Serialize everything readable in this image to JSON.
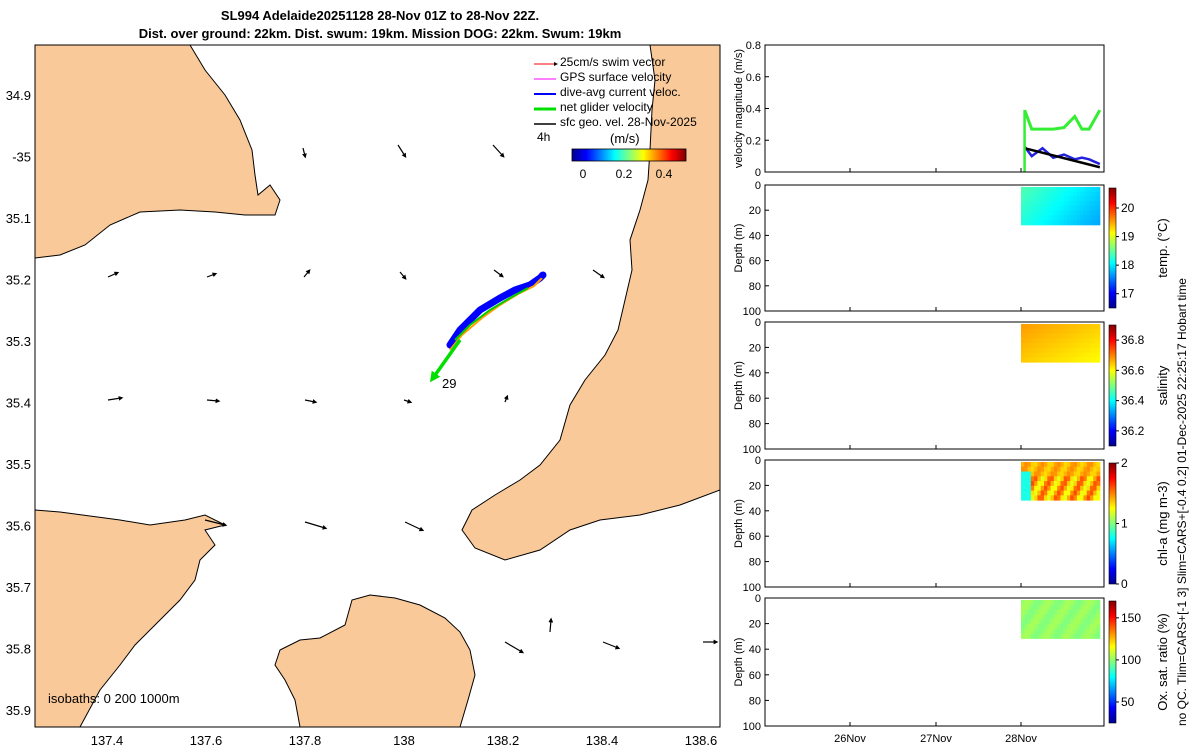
{
  "title": {
    "line1": "SL994 Adelaide20251128 28-Nov 01Z to 28-Nov 22Z.",
    "line2": "Dist. over ground: 22km. Dist. swum: 19km. Mission DOG: 22km. Swum: 19km"
  },
  "map": {
    "lon_ticks": [
      "137.4",
      "137.6",
      "137.8",
      "138",
      "138.2",
      "138.4",
      "138.6"
    ],
    "lat_ticks": [
      "34.9",
      "-35",
      "35.1",
      "35.2",
      "35.3",
      "35.4",
      "35.5",
      "35.6",
      "35.7",
      "35.8",
      "35.9"
    ],
    "legend": [
      {
        "label": "25cm/s swim vector",
        "color": "#ff0000"
      },
      {
        "label": "GPS surface velocity",
        "color": "#ff00ff"
      },
      {
        "label": "dive-avg current veloc.",
        "color": "#0000ff"
      },
      {
        "label": "net glider velocity",
        "color": "#00e000"
      },
      {
        "label": "sfc geo. vel. 28-Nov-2025",
        "color": "#000000"
      }
    ],
    "time_label": "4h",
    "colorbar": {
      "unit": "(m/s)",
      "ticks": [
        "0",
        "0.2",
        "0.4"
      ]
    },
    "track_label": "29",
    "isobaths": "isobaths: 0   200  1000m",
    "land_color": "#f9c999"
  },
  "chart_data": [
    {
      "type": "line",
      "ylabel": "velocity magnitude (m/s)",
      "ylim": [
        0,
        0.8
      ],
      "yticks": [
        "0",
        "0.2",
        "0.4",
        "0.6",
        "0.8"
      ],
      "xticks": [
        "26Nov",
        "27Nov",
        "28Nov"
      ],
      "series": [
        {
          "color": "#33ee33",
          "x": [
            "28Nov 01Z",
            "28Nov 03Z",
            "28Nov 06Z",
            "28Nov 09Z",
            "28Nov 12Z",
            "28Nov 15Z",
            "28Nov 17Z",
            "28Nov 19Z",
            "28Nov 22Z"
          ],
          "values": [
            0.39,
            0.27,
            0.27,
            0.27,
            0.28,
            0.35,
            0.27,
            0.27,
            0.39
          ]
        },
        {
          "color": "#2222dd",
          "x": [
            "28Nov 01Z",
            "28Nov 03Z",
            "28Nov 06Z",
            "28Nov 09Z",
            "28Nov 12Z",
            "28Nov 15Z",
            "28Nov 17Z",
            "28Nov 19Z",
            "28Nov 22Z"
          ],
          "values": [
            0.16,
            0.1,
            0.15,
            0.09,
            0.11,
            0.08,
            0.09,
            0.08,
            0.05
          ]
        },
        {
          "color": "#000000",
          "x": [
            "28Nov 01Z",
            "28Nov 22Z"
          ],
          "values": [
            0.15,
            0.03
          ]
        }
      ]
    },
    {
      "type": "heatmap",
      "ylabel": "Depth (m)",
      "colorbar_label": "temp. (°C)",
      "yticks": [
        "0",
        "20",
        "40",
        "60",
        "80",
        "100"
      ],
      "cticks": [
        "17",
        "18",
        "19",
        "20"
      ],
      "crange": [
        16.5,
        20.7
      ]
    },
    {
      "type": "heatmap",
      "ylabel": "Depth (m)",
      "colorbar_label": "salinity",
      "yticks": [
        "0",
        "20",
        "40",
        "60",
        "80",
        "100"
      ],
      "cticks": [
        "36.2",
        "36.4",
        "36.6",
        "36.8"
      ],
      "crange": [
        36.1,
        36.9
      ]
    },
    {
      "type": "heatmap",
      "ylabel": "Depth (m)",
      "colorbar_label": "chl-a (mg m-3)",
      "yticks": [
        "0",
        "20",
        "40",
        "60",
        "80",
        "100"
      ],
      "cticks": [
        "0",
        "1",
        "2"
      ],
      "crange": [
        0,
        2
      ]
    },
    {
      "type": "heatmap",
      "ylabel": "Depth (m)",
      "colorbar_label": "Ox. sat. ratio (%)",
      "yticks": [
        "0",
        "20",
        "40",
        "60",
        "80",
        "100"
      ],
      "cticks": [
        "50",
        "100",
        "150"
      ],
      "crange": [
        25,
        170
      ]
    }
  ],
  "side_note": "no QC. Tlim=CARS+[-1 3] Slim=CARS+[-0.4 0.2] 01-Dec-2025 22:25:17 Hobart time"
}
